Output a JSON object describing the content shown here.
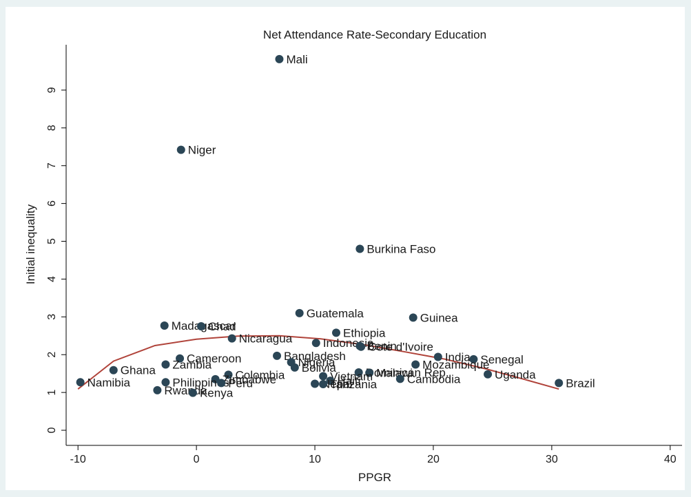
{
  "chart_data": {
    "type": "scatter",
    "title": "Net Attendance Rate-Secondary Education",
    "xlabel": "PPGR",
    "ylabel": "Initial inequality",
    "xlim": [
      -11,
      41
    ],
    "ylim": [
      -0.4,
      10.2
    ],
    "xticks": [
      -10,
      0,
      10,
      20,
      30,
      40
    ],
    "yticks": [
      0,
      1,
      2,
      3,
      4,
      5,
      6,
      7,
      8,
      9
    ],
    "grid": false,
    "colors": {
      "marker": "#2b4656",
      "fit_line": "#b0433a",
      "background": "#eaf2f3",
      "plot_bg": "#ffffff"
    },
    "points": [
      {
        "label": "Mali",
        "x": 7.0,
        "y": 9.82
      },
      {
        "label": "Niger",
        "x": -1.3,
        "y": 7.42
      },
      {
        "label": "Burkina Faso",
        "x": 13.8,
        "y": 4.8
      },
      {
        "label": "Guatemala",
        "x": 8.7,
        "y": 3.1
      },
      {
        "label": "Guinea",
        "x": 18.3,
        "y": 2.98
      },
      {
        "label": "Madagascar",
        "x": -2.7,
        "y": 2.77
      },
      {
        "label": "Chad",
        "x": 0.4,
        "y": 2.75
      },
      {
        "label": "Ethiopia",
        "x": 11.8,
        "y": 2.58
      },
      {
        "label": "Nicaragua",
        "x": 3.0,
        "y": 2.43
      },
      {
        "label": "Indonesia",
        "x": 10.1,
        "y": 2.31
      },
      {
        "label": "Benin",
        "x": 13.8,
        "y": 2.23
      },
      {
        "label": "Cote d'Ivoire",
        "x": 13.9,
        "y": 2.21
      },
      {
        "label": "Bangladesh",
        "x": 6.8,
        "y": 1.97
      },
      {
        "label": "India",
        "x": 20.4,
        "y": 1.94
      },
      {
        "label": "Cameroon",
        "x": -1.4,
        "y": 1.9
      },
      {
        "label": "Senegal",
        "x": 23.4,
        "y": 1.88
      },
      {
        "label": "Nigeria",
        "x": 8.0,
        "y": 1.8
      },
      {
        "label": "Zambia",
        "x": -2.6,
        "y": 1.74
      },
      {
        "label": "Mozambique",
        "x": 18.5,
        "y": 1.74
      },
      {
        "label": "Bolivia",
        "x": 8.3,
        "y": 1.66
      },
      {
        "label": "Ghana",
        "x": -7.0,
        "y": 1.59
      },
      {
        "label": "Dominican Rep.",
        "x": 13.7,
        "y": 1.53
      },
      {
        "label": "Malawi",
        "x": 14.6,
        "y": 1.52
      },
      {
        "label": "Uganda",
        "x": 24.6,
        "y": 1.48
      },
      {
        "label": "Colombia",
        "x": 2.7,
        "y": 1.47
      },
      {
        "label": "Vietnam",
        "x": 10.7,
        "y": 1.43
      },
      {
        "label": "Cambodia",
        "x": 17.2,
        "y": 1.36
      },
      {
        "label": "Zimbabwe",
        "x": 1.6,
        "y": 1.35
      },
      {
        "label": "Haiti",
        "x": 11.3,
        "y": 1.31
      },
      {
        "label": "Namibia",
        "x": -9.8,
        "y": 1.27
      },
      {
        "label": "Philippines",
        "x": -2.6,
        "y": 1.27
      },
      {
        "label": "Peru",
        "x": 2.1,
        "y": 1.25
      },
      {
        "label": "Brazil",
        "x": 30.6,
        "y": 1.25
      },
      {
        "label": "Nepal",
        "x": 10.0,
        "y": 1.23
      },
      {
        "label": "Tanzania",
        "x": 10.7,
        "y": 1.22
      },
      {
        "label": "Rwanda",
        "x": -3.3,
        "y": 1.06
      },
      {
        "label": "Kenya",
        "x": -0.3,
        "y": 0.99
      }
    ],
    "fit_line": {
      "name": "",
      "x": [
        -10.0,
        -7.0,
        -3.5,
        0.0,
        3.5,
        7.0,
        10.5,
        14.0,
        17.5,
        21.0,
        24.5,
        28.0,
        30.6
      ],
      "y": [
        1.09,
        1.83,
        2.24,
        2.41,
        2.49,
        2.5,
        2.42,
        2.27,
        2.08,
        1.88,
        1.62,
        1.32,
        1.09
      ]
    }
  }
}
